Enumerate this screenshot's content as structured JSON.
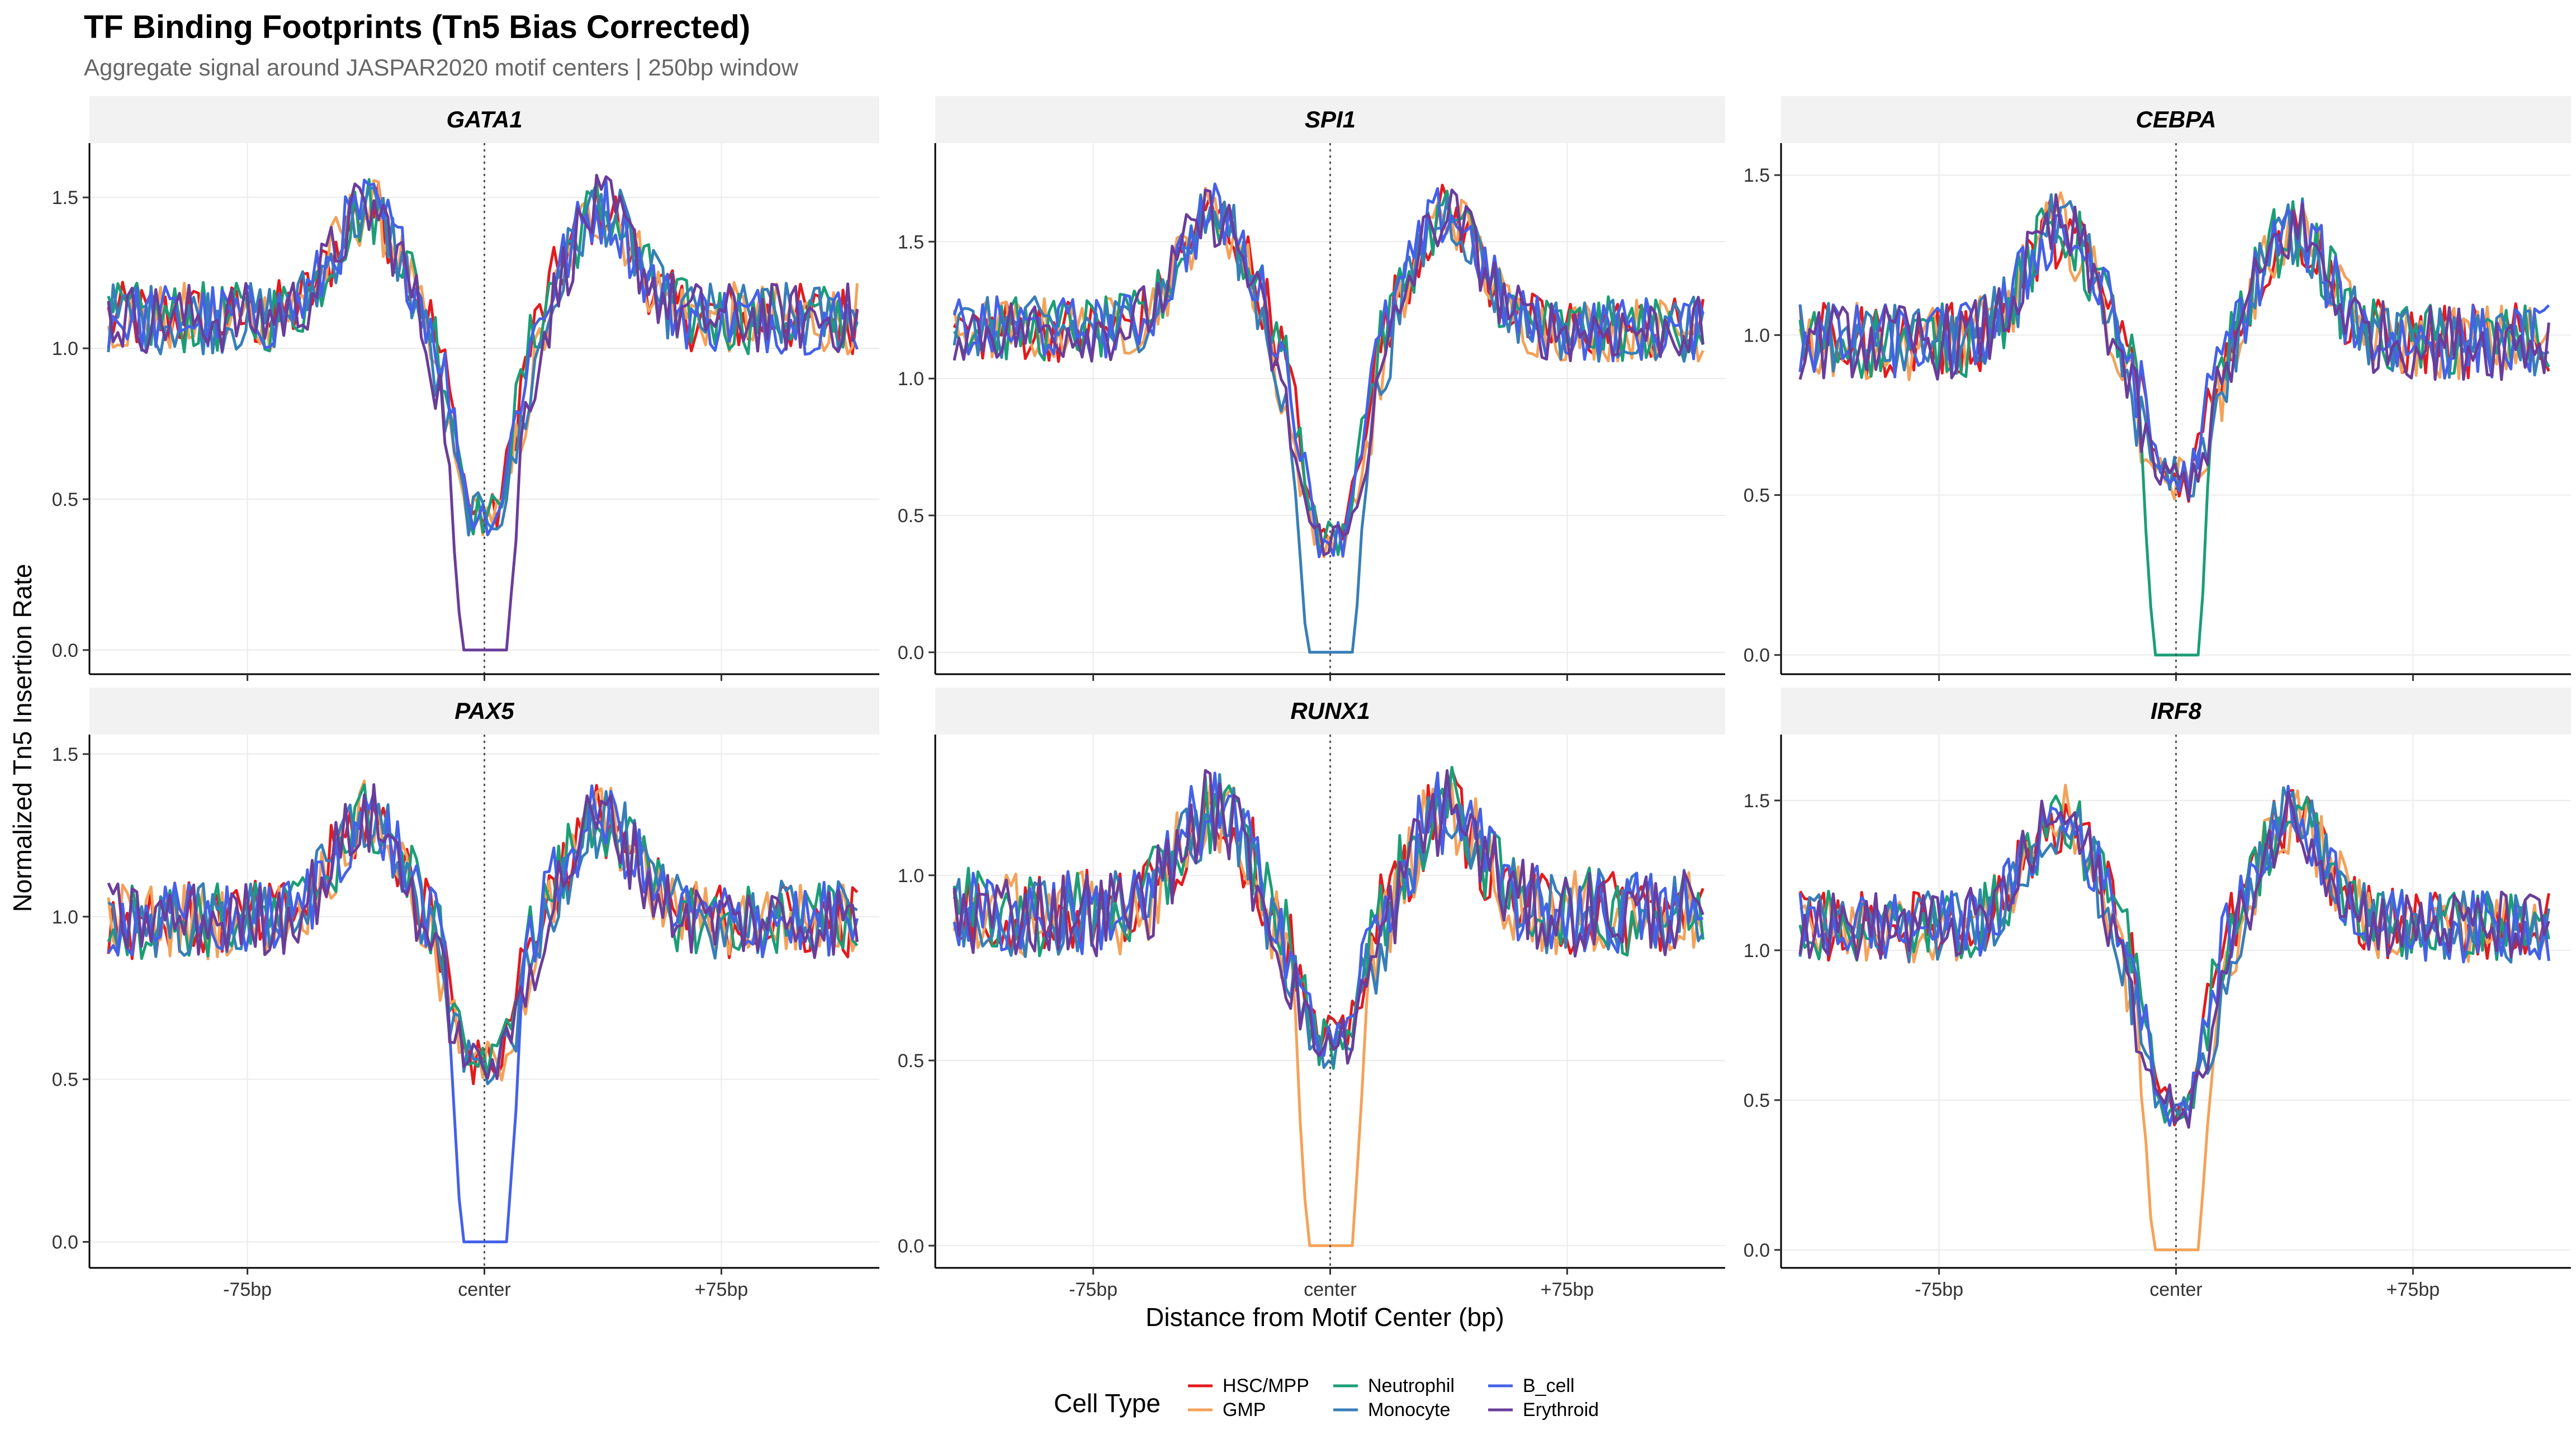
{
  "figure": {
    "title": "TF Binding Footprints (Tn5 Bias Corrected)",
    "subtitle": "Aggregate signal around JASPAR2020 motif centers | 250bp window"
  },
  "chart_data": {
    "type": "line",
    "facet_layout": "2 rows x 3 columns",
    "x_axis": {
      "label": "Distance from Motif Center (bp)",
      "range": [
        -125,
        125
      ],
      "ticks": [
        -75,
        0,
        75
      ],
      "tick_labels": [
        "-75bp",
        "center",
        "+75bp"
      ]
    },
    "y_axis": {
      "label": "Normalized Tn5 Insertion Rate"
    },
    "reference_line": {
      "x": 0,
      "style": "dotted"
    },
    "legend": {
      "title": "Cell Type",
      "position": "bottom",
      "series": [
        {
          "name": "HSC/MPP",
          "color": "#E41A1C"
        },
        {
          "name": "GMP",
          "color": "#F4A259"
        },
        {
          "name": "Neutrophil",
          "color": "#1B9E77"
        },
        {
          "name": "Monocyte",
          "color": "#377EB8"
        },
        {
          "name": "B_cell",
          "color": "#4461E8"
        },
        {
          "name": "Erythroid",
          "color": "#6A3D9A"
        }
      ]
    },
    "panels": [
      {
        "tf": "GATA1",
        "ylim": [
          -0.08,
          1.68
        ],
        "yticks": [
          0,
          0.5,
          1.0,
          1.5
        ],
        "ytick_labels": [
          "0.0",
          "0.5",
          "1.0",
          "1.5"
        ],
        "flank_level": 1.1,
        "peak_level": 1.46,
        "trough_level": 0.45,
        "zero_series": "Erythroid"
      },
      {
        "tf": "SPI1",
        "ylim": [
          -0.08,
          1.86
        ],
        "yticks": [
          0,
          0.5,
          1.0,
          1.5
        ],
        "ytick_labels": [
          "0.0",
          "0.5",
          "1.0",
          "1.5"
        ],
        "flank_level": 1.18,
        "peak_level": 1.6,
        "trough_level": 0.42,
        "zero_series": "Monocyte"
      },
      {
        "tf": "CEBPA",
        "ylim": [
          -0.06,
          1.6
        ],
        "yticks": [
          0,
          0.5,
          1.0,
          1.5
        ],
        "ytick_labels": [
          "0.0",
          "0.5",
          "1.0",
          "1.5"
        ],
        "flank_level": 0.98,
        "peak_level": 1.33,
        "trough_level": 0.55,
        "zero_series": "Neutrophil"
      },
      {
        "tf": "PAX5",
        "ylim": [
          -0.08,
          1.56
        ],
        "yticks": [
          0,
          0.5,
          1.0,
          1.5
        ],
        "ytick_labels": [
          "0.0",
          "0.5",
          "1.0",
          "1.5"
        ],
        "flank_level": 0.99,
        "peak_level": 1.3,
        "trough_level": 0.55,
        "zero_series": "B_cell"
      },
      {
        "tf": "RUNX1",
        "ylim": [
          -0.06,
          1.38
        ],
        "yticks": [
          0,
          0.5,
          1.0
        ],
        "ytick_labels": [
          "0.0",
          "0.5",
          "1.0"
        ],
        "flank_level": 0.9,
        "peak_level": 1.18,
        "trough_level": 0.55,
        "zero_series": "GMP"
      },
      {
        "tf": "IRF8",
        "ylim": [
          -0.06,
          1.72
        ],
        "yticks": [
          0,
          0.5,
          1.0,
          1.5
        ],
        "ytick_labels": [
          "0.0",
          "0.5",
          "1.0",
          "1.5"
        ],
        "flank_level": 1.08,
        "peak_level": 1.44,
        "trough_level": 0.48,
        "zero_series": "GMP"
      }
    ]
  }
}
